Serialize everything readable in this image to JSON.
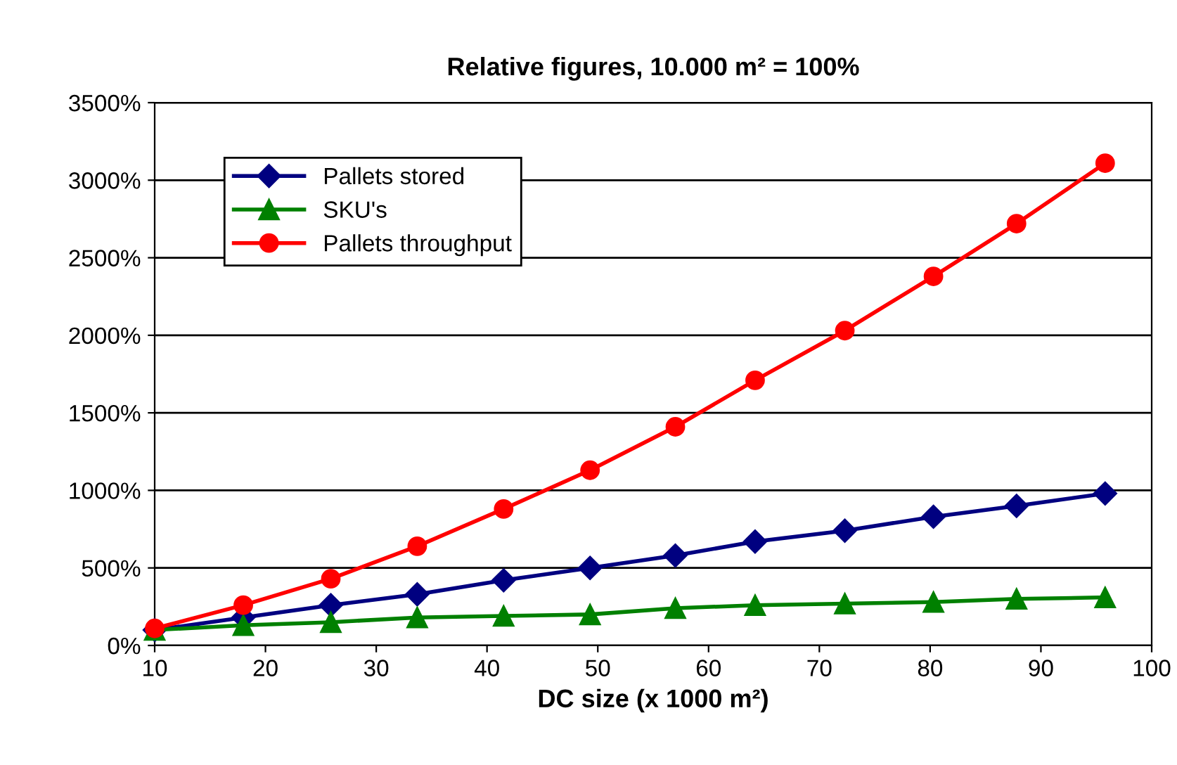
{
  "chart_data": {
    "type": "line",
    "title": "Relative figures, 10.000 m² = 100%",
    "xlabel": "DC size (x 1000 m²)",
    "x": [
      10,
      18,
      25.9,
      33.7,
      41.5,
      49.3,
      57,
      64.2,
      72.3,
      80.3,
      87.8,
      95.8
    ],
    "series": [
      {
        "name": "Pallets stored",
        "color": "#000080",
        "marker": "diamond",
        "values": [
          100,
          180,
          260,
          330,
          420,
          500,
          580,
          670,
          740,
          830,
          900,
          980
        ]
      },
      {
        "name": "SKU's",
        "color": "#008000",
        "marker": "triangle",
        "values": [
          100,
          130,
          150,
          180,
          190,
          200,
          240,
          260,
          270,
          280,
          300,
          310
        ]
      },
      {
        "name": "Pallets throughput",
        "color": "#ff0000",
        "marker": "circle",
        "values": [
          110,
          260,
          430,
          640,
          880,
          1130,
          1410,
          1710,
          2030,
          2380,
          2720,
          3110
        ]
      }
    ],
    "xlim": [
      10,
      100
    ],
    "xticks": [
      10,
      20,
      30,
      40,
      50,
      60,
      70,
      80,
      90,
      100
    ],
    "ylim": [
      0,
      3500
    ],
    "yticks": [
      {
        "value": 0,
        "label": "0%"
      },
      {
        "value": 500,
        "label": "500%"
      },
      {
        "value": 1000,
        "label": "1000%"
      },
      {
        "value": 1500,
        "label": "1500%"
      },
      {
        "value": 2000,
        "label": "2000%"
      },
      {
        "value": 2500,
        "label": "2500%"
      },
      {
        "value": 3000,
        "label": "3000%"
      },
      {
        "value": 3500,
        "label": "3500%"
      }
    ],
    "grid": "y",
    "legend": "top left",
    "line_style": "solid"
  }
}
